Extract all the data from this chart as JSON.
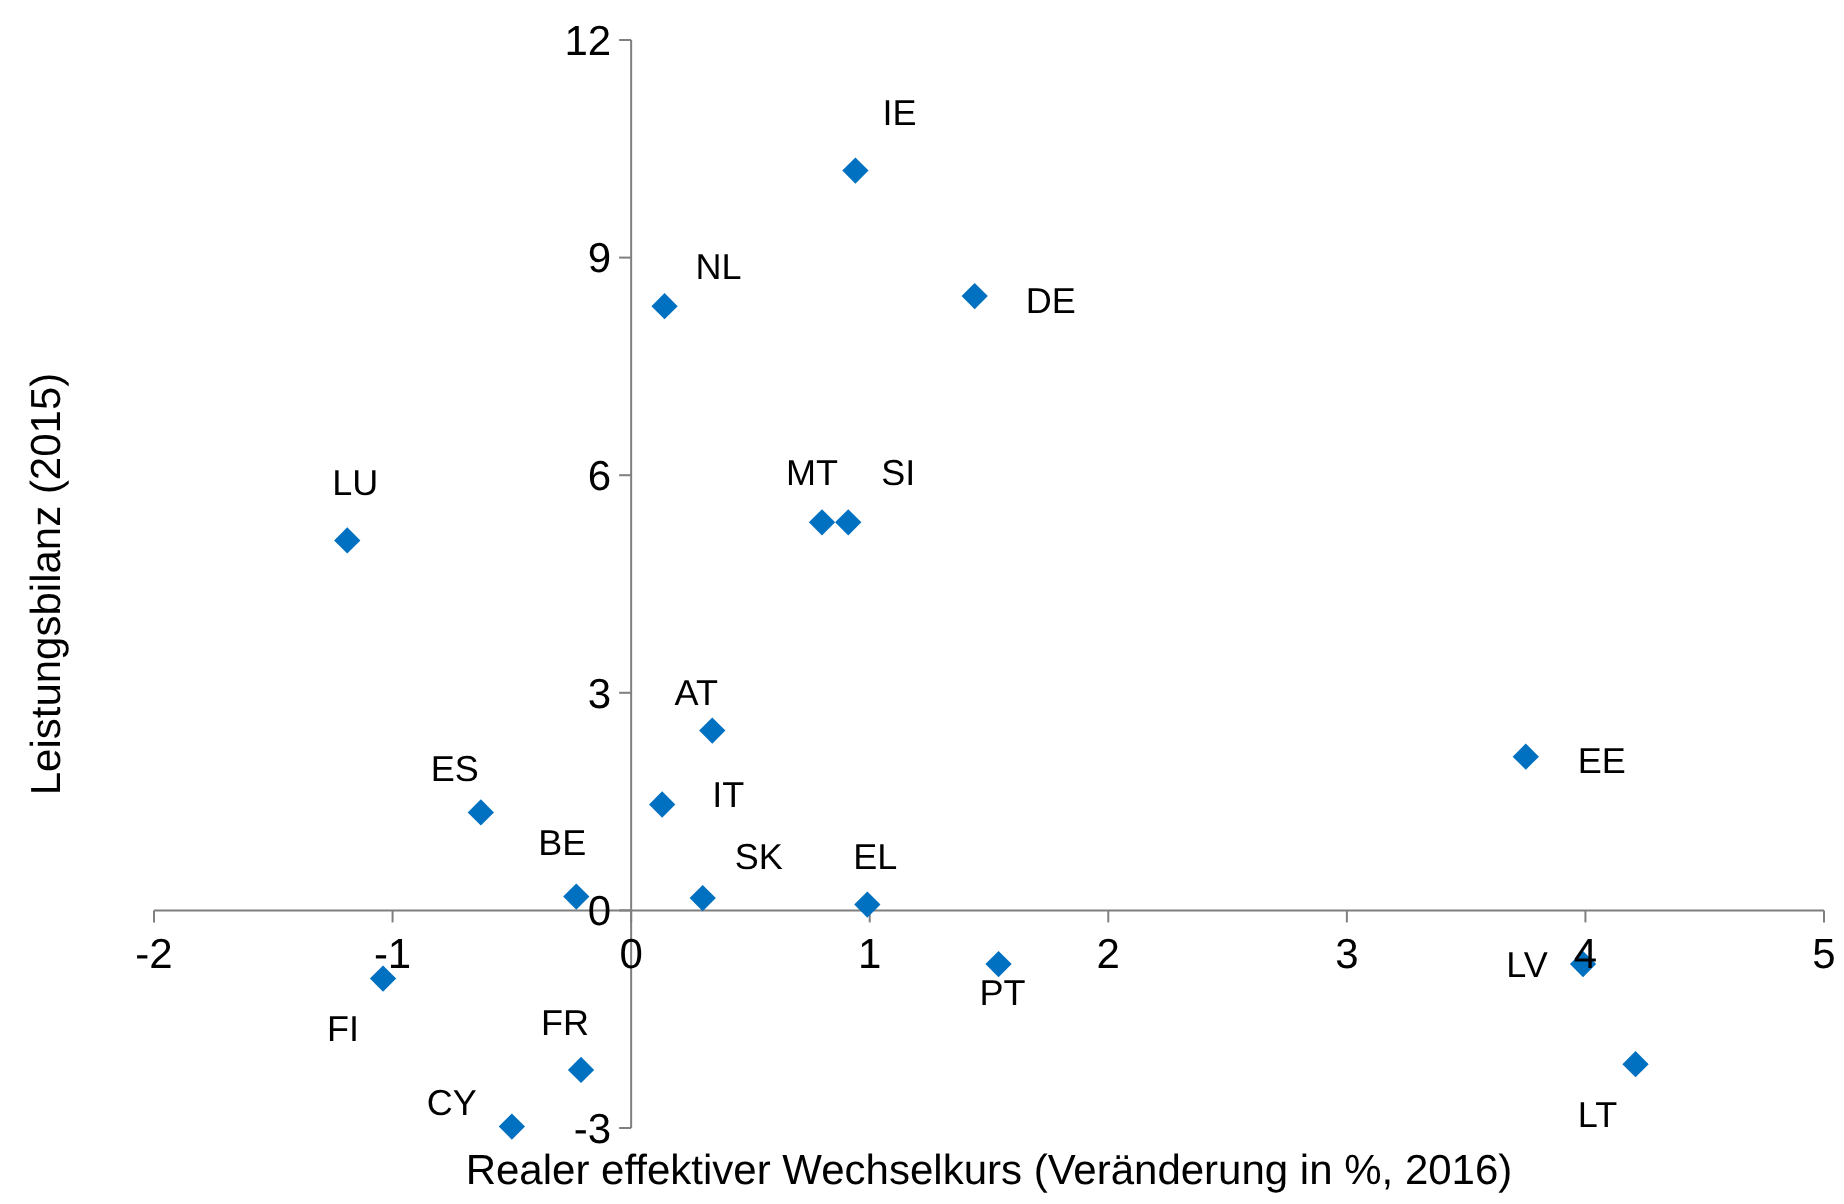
{
  "chart_data": {
    "type": "scatter",
    "xlabel": "Realer effektiver Wechselkurs (Veränderung in %, 2016)",
    "ylabel": "Leistungsbilanz (2015)",
    "xlim": [
      -2,
      5
    ],
    "xticks": [
      -2,
      -1,
      0,
      1,
      2,
      3,
      4,
      5
    ],
    "ylim": [
      -3,
      12
    ],
    "yticks": [
      -3,
      0,
      3,
      6,
      9,
      12
    ],
    "grid": false,
    "marker": "diamond",
    "series": [
      {
        "color": "#0070c0",
        "x": [
          0.94,
          0.14,
          1.44,
          -1.19,
          0.8,
          0.91,
          0.34,
          3.75,
          -0.63,
          0.13,
          -0.23,
          0.3,
          0.99,
          -1.04,
          1.54,
          3.99,
          -0.21,
          4.21,
          -0.5
        ],
        "values": [
          10.2,
          8.33,
          8.47,
          5.1,
          5.35,
          5.35,
          2.48,
          2.12,
          1.35,
          1.46,
          0.19,
          0.17,
          0.08,
          -0.94,
          -0.74,
          -0.74,
          -2.2,
          -2.12,
          -2.98
        ]
      }
    ],
    "annotations": [
      {
        "text": "IE",
        "x": 0.94,
        "y": 10.2
      },
      {
        "text": "NL",
        "x": 0.14,
        "y": 8.33
      },
      {
        "text": "DE",
        "x": 1.44,
        "y": 8.47
      },
      {
        "text": "LU",
        "x": -1.19,
        "y": 5.1
      },
      {
        "text": "MT",
        "x": 0.8,
        "y": 5.35
      },
      {
        "text": "SI",
        "x": 0.91,
        "y": 5.35
      },
      {
        "text": "AT",
        "x": 0.34,
        "y": 2.48
      },
      {
        "text": "EE",
        "x": 3.75,
        "y": 2.12
      },
      {
        "text": "ES",
        "x": -0.63,
        "y": 1.35
      },
      {
        "text": "IT",
        "x": 0.13,
        "y": 1.46
      },
      {
        "text": "BE",
        "x": -0.23,
        "y": 0.19
      },
      {
        "text": "SK",
        "x": 0.3,
        "y": 0.17
      },
      {
        "text": "EL",
        "x": 0.99,
        "y": 0.08
      },
      {
        "text": "FI",
        "x": -1.04,
        "y": -0.94
      },
      {
        "text": "PT",
        "x": 1.54,
        "y": -0.74
      },
      {
        "text": "LV",
        "x": 3.99,
        "y": -0.74
      },
      {
        "text": "FR",
        "x": -0.21,
        "y": -2.2
      },
      {
        "text": "LT",
        "x": 4.21,
        "y": -2.12
      },
      {
        "text": "CY",
        "x": -0.5,
        "y": -2.98
      }
    ]
  }
}
